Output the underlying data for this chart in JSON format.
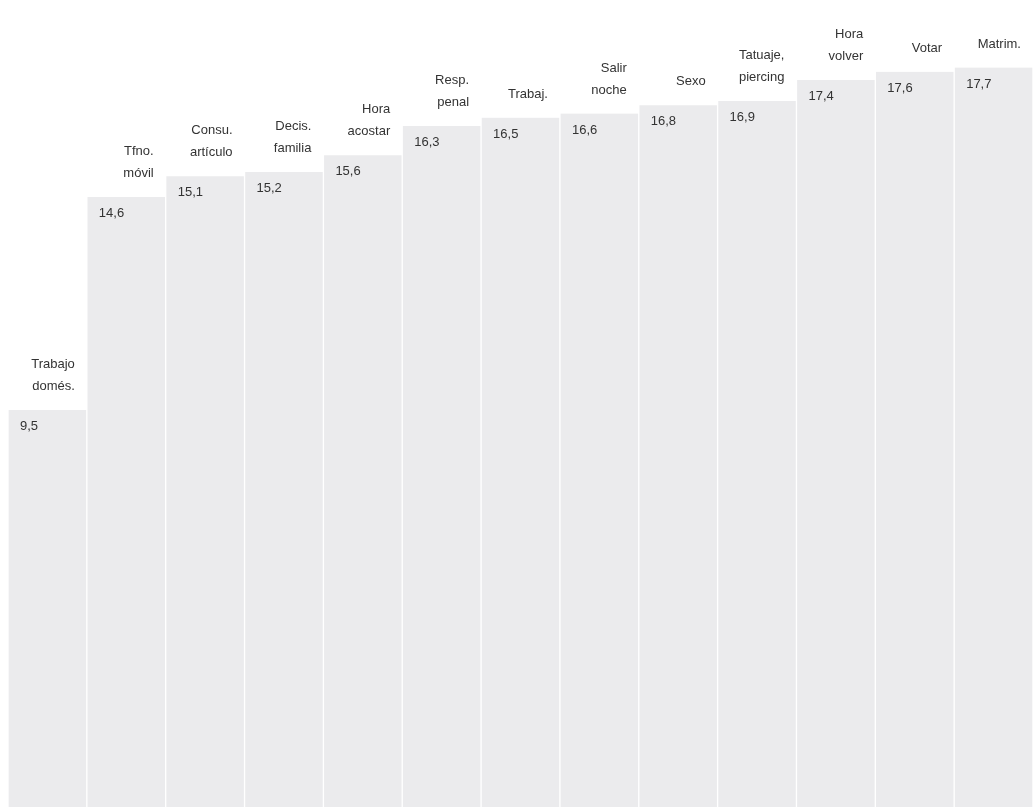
{
  "chart_data": {
    "type": "bar",
    "categories": [
      "Trabajo domés.",
      "Tfno. móvil",
      "Consu. artículo",
      "Decis. familia",
      "Hora acostar",
      "Resp. penal",
      "Trabaj.",
      "Salir noche",
      "Sexo",
      "Tatuaje, piercing",
      "Hora volver",
      "Votar",
      "Matrim."
    ],
    "values": [
      9.5,
      14.6,
      15.1,
      15.2,
      15.6,
      16.3,
      16.5,
      16.6,
      16.8,
      16.9,
      17.4,
      17.6,
      17.7
    ],
    "value_labels": [
      "9,5",
      "14,6",
      "15,1",
      "15,2",
      "15,6",
      "16,3",
      "16,5",
      "16,6",
      "16,8",
      "16,9",
      "17,4",
      "17,6",
      "17,7"
    ],
    "color": "#ebebed",
    "legend": false
  }
}
